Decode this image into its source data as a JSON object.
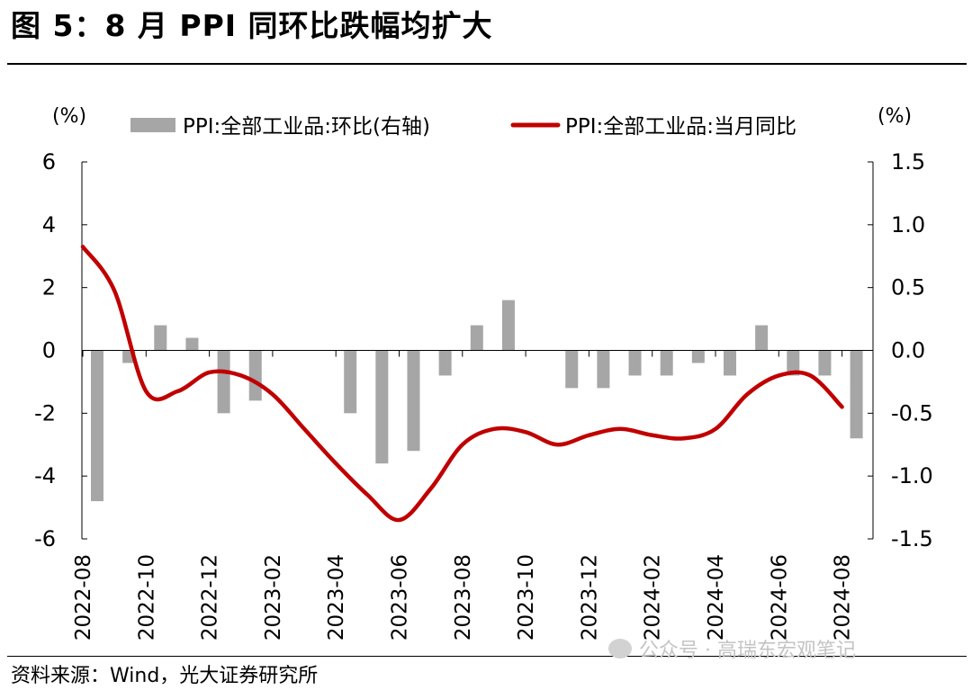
{
  "header": {
    "title": "图 5：8 月 PPI 同环比跌幅均扩大"
  },
  "footer": {
    "source": "资料来源：Wind，光大证券研究所"
  },
  "watermark": {
    "text": "公众号 · 高瑞东宏观笔记"
  },
  "colors": {
    "bar": "#a6a6a6",
    "line": "#c00000",
    "axis": "#000000"
  },
  "chart_data": {
    "type": "bar+line",
    "left_axis": {
      "unit_label": "(%)",
      "min": -6,
      "max": 6,
      "ticks": [
        "6",
        "4",
        "2",
        "0",
        "-2",
        "-4",
        "-6"
      ],
      "tick_values": [
        6,
        4,
        2,
        0,
        -2,
        -4,
        -6
      ]
    },
    "right_axis": {
      "unit_label": "(%)",
      "min": -1.5,
      "max": 1.5,
      "ticks": [
        "1.5",
        "1.0",
        "0.5",
        "0.0",
        "-0.5",
        "-1.0",
        "-1.5"
      ],
      "tick_values": [
        1.5,
        1.0,
        0.5,
        0.0,
        -0.5,
        -1.0,
        -1.5
      ]
    },
    "x_labels": [
      "2022-08",
      "2022-10",
      "2022-12",
      "2023-02",
      "2023-04",
      "2023-06",
      "2023-08",
      "2023-10",
      "2023-12",
      "2024-02",
      "2024-04",
      "2024-06",
      "2024-08"
    ],
    "x": [
      "2022-08",
      "2022-09",
      "2022-10",
      "2022-11",
      "2022-12",
      "2023-01",
      "2023-02",
      "2023-03",
      "2023-04",
      "2023-05",
      "2023-06",
      "2023-07",
      "2023-08",
      "2023-09",
      "2023-10",
      "2023-11",
      "2023-12",
      "2024-01",
      "2024-02",
      "2024-03",
      "2024-04",
      "2024-05",
      "2024-06",
      "2024-07",
      "2024-08"
    ],
    "series": [
      {
        "name": "PPI:全部工业品:环比(右轴)",
        "kind": "bar",
        "axis": "right",
        "values": [
          -1.2,
          -0.1,
          0.2,
          0.1,
          -0.5,
          -0.4,
          0.0,
          0.0,
          -0.5,
          -0.9,
          -0.8,
          -0.2,
          0.2,
          0.4,
          0.0,
          -0.3,
          -0.3,
          -0.2,
          -0.2,
          -0.1,
          -0.2,
          0.2,
          -0.2,
          -0.2,
          -0.7
        ]
      },
      {
        "name": "PPI:全部工业品:当月同比",
        "kind": "line",
        "axis": "left",
        "values": [
          3.3,
          1.9,
          -1.3,
          -1.3,
          -0.7,
          -0.8,
          -1.4,
          -2.5,
          -3.6,
          -4.6,
          -5.4,
          -4.4,
          -3.0,
          -2.5,
          -2.6,
          -3.0,
          -2.7,
          -2.5,
          -2.7,
          -2.8,
          -2.5,
          -1.4,
          -0.8,
          -0.8,
          -1.8
        ]
      }
    ]
  }
}
